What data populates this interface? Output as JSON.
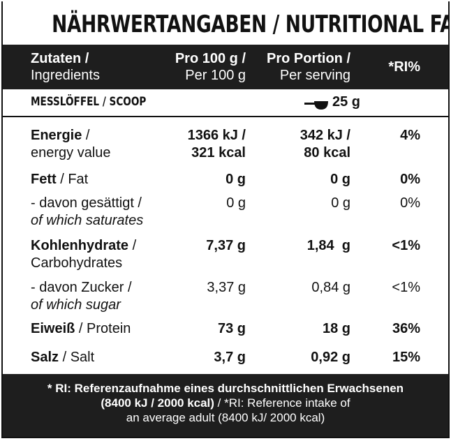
{
  "title": "NÄHRWERTANGABEN / NUTRITIONAL FACTS",
  "header": {
    "col1_de": "Zutaten /",
    "col1_en": "Ingredients",
    "col2_de": "Pro 100 g /",
    "col2_en": "Per 100 g",
    "col3_de": "Pro Portion /",
    "col3_en": "Per serving",
    "col4": "*RI%"
  },
  "scoop": {
    "label": "MESSLÖFFEL / SCOOP",
    "amount": "25 g",
    "icon": "scoop-icon"
  },
  "rows": [
    {
      "name_de": "Energie",
      "sep": " /",
      "name_en": "energy value",
      "per100_a": "1366 kJ /",
      "per100_b": "321 kcal",
      "serving_a": "342 kJ /",
      "serving_b": "80 kcal",
      "ri": "4%"
    },
    {
      "name_de": "Fett",
      "name_en": "Fat",
      "per100": "0 g",
      "serving": "0 g",
      "ri": "0%"
    },
    {
      "name_de": "- davon gesättigt /",
      "name_en": "of which saturates",
      "per100": "0 g",
      "serving": "0 g",
      "ri": "0%"
    },
    {
      "name_de": "Kohlenhydrate",
      "sep": " /",
      "name_en": "Carbohydrates",
      "per100": "7,37 g",
      "serving": "1,84  g",
      "ri": "<1%"
    },
    {
      "name_de": "- davon Zucker /",
      "name_en": "of which sugar",
      "per100": "3,37 g",
      "serving": "0,84 g",
      "ri": "<1%"
    },
    {
      "name_de": "Eiweiß",
      "name_en": "Protein",
      "per100": "73 g",
      "serving": "18 g",
      "ri": "36%"
    },
    {
      "name_de": "Salz",
      "name_en": "Salt",
      "per100": "3,7 g",
      "serving": "0,92 g",
      "ri": "15%"
    }
  ],
  "footer": {
    "line1": "* RI: Referenzaufnahme eines durchschnittlichen Erwachsenen",
    "line2_bold": "(8400 kJ / 2000 kcal)",
    "line2_rest": " / *RI: Reference intake of",
    "line3": "an average adult (8400 kJ/ 2000 kcal)"
  },
  "colors": {
    "dark": "#1e1e1e",
    "text": "#111111",
    "background": "#ffffff"
  }
}
